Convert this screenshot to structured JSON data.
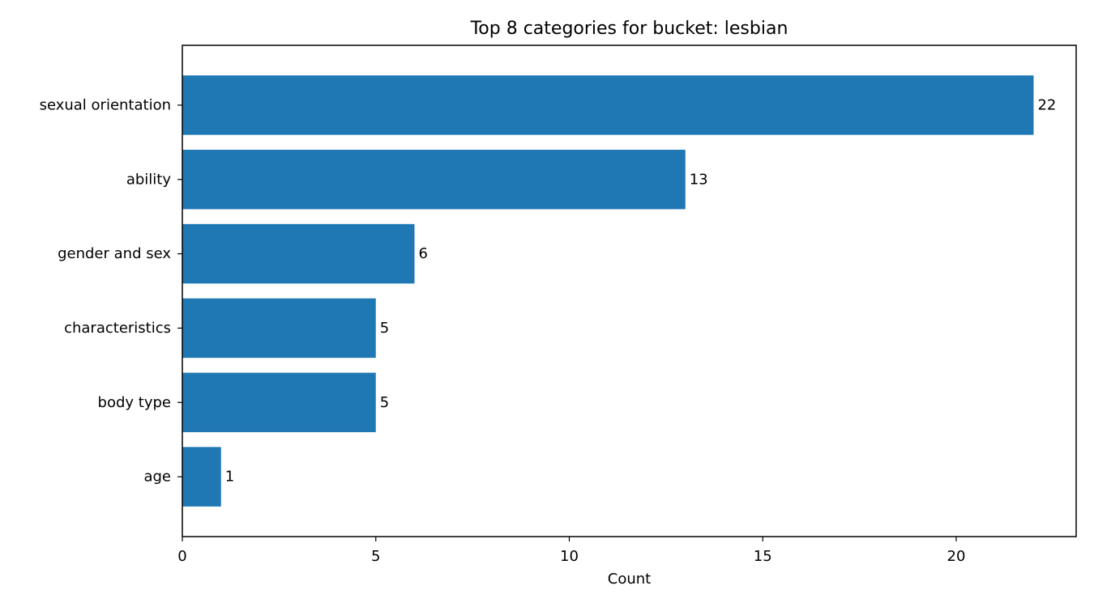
{
  "chart_data": {
    "type": "bar",
    "orientation": "horizontal",
    "title": "Top 8 categories for bucket: lesbian",
    "xlabel": "Count",
    "ylabel": "",
    "categories": [
      "sexual orientation",
      "ability",
      "gender and sex",
      "characteristics",
      "body type",
      "age"
    ],
    "values": [
      22,
      13,
      6,
      5,
      5,
      1
    ],
    "data_labels": [
      "22",
      "13",
      "6",
      "5",
      "5",
      "1"
    ],
    "xlim": [
      0,
      23.1
    ],
    "xticks": [
      0,
      5,
      10,
      15,
      20
    ],
    "bar_color": "#1f77b4",
    "grid": false,
    "legend": "none"
  }
}
